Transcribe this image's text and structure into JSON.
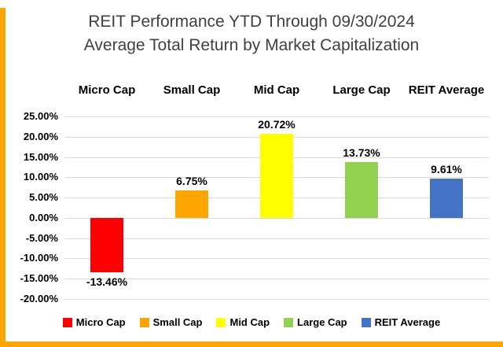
{
  "accent_color": "#FFA500",
  "title": {
    "line1": "REIT Performance YTD Through 09/30/2024",
    "line2": "Average Total Return by Market Capitalization"
  },
  "chart_data": {
    "type": "bar",
    "title": "REIT Performance YTD Through 09/30/2024 Average Total Return by Market Capitalization",
    "categories": [
      "Micro Cap",
      "Small Cap",
      "Mid Cap",
      "Large Cap",
      "REIT Average"
    ],
    "values": [
      -13.46,
      6.75,
      20.72,
      13.73,
      9.61
    ],
    "value_labels": [
      "-13.46%",
      "6.75%",
      "20.72%",
      "13.73%",
      "9.61%"
    ],
    "colors": [
      "#FF0000",
      "#FFA500",
      "#FFFF00",
      "#92D050",
      "#4472C4"
    ],
    "xlabel": "",
    "ylabel": "",
    "ylim": [
      -20,
      25
    ],
    "ytick_step": 5,
    "ytick_labels": [
      "25.00%",
      "20.00%",
      "15.00%",
      "10.00%",
      "5.00%",
      "0.00%",
      "-5.00%",
      "-10.00%",
      "-15.00%",
      "-20.00%"
    ],
    "grid": true,
    "gridline_color": "#D9D9D9",
    "legend_position": "bottom",
    "legend": [
      {
        "label": "Micro Cap",
        "color": "#FF0000"
      },
      {
        "label": "Small Cap",
        "color": "#FFA500"
      },
      {
        "label": "Mid Cap",
        "color": "#FFFF00"
      },
      {
        "label": "Large Cap",
        "color": "#92D050"
      },
      {
        "label": "REIT Average",
        "color": "#4472C4"
      }
    ]
  }
}
